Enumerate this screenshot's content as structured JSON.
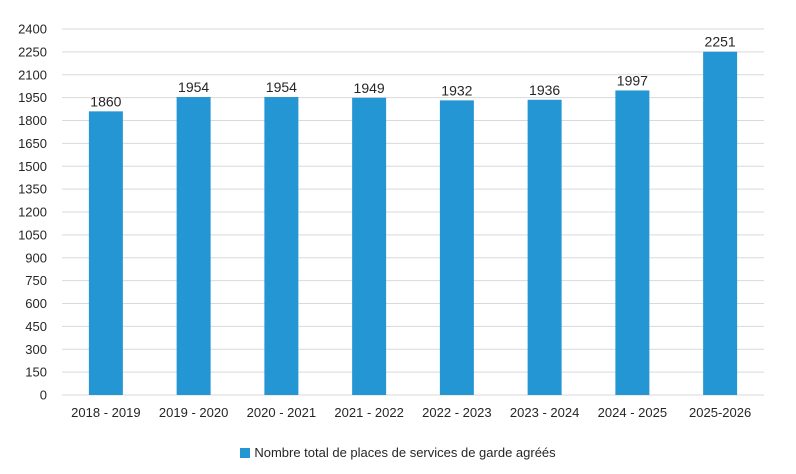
{
  "chart_data": {
    "type": "bar",
    "title": "",
    "xlabel": "",
    "ylabel": "",
    "categories": [
      "2018 - 2019",
      "2019 - 2020",
      "2020 - 2021",
      "2021 - 2022",
      "2022 - 2023",
      "2023 - 2024",
      "2024 - 2025",
      "2025-2026"
    ],
    "series": [
      {
        "name": "Nombre total de places de services de garde agréés",
        "values": [
          1860,
          1954,
          1954,
          1949,
          1932,
          1936,
          1997,
          2251
        ],
        "color": "#2596d4"
      }
    ],
    "ylim": [
      0,
      2400
    ],
    "yticks": [
      "0",
      "150",
      "300",
      "450",
      "600",
      "750",
      "900",
      "1050",
      "1200",
      "1350",
      "1500",
      "1650",
      "1800",
      "1950",
      "2100",
      "2250",
      "2400"
    ],
    "grid": true,
    "legend_position": "bottom",
    "data_labels": [
      "1860",
      "1954",
      "1954",
      "1949",
      "1932",
      "1936",
      "1997",
      "2251"
    ]
  }
}
